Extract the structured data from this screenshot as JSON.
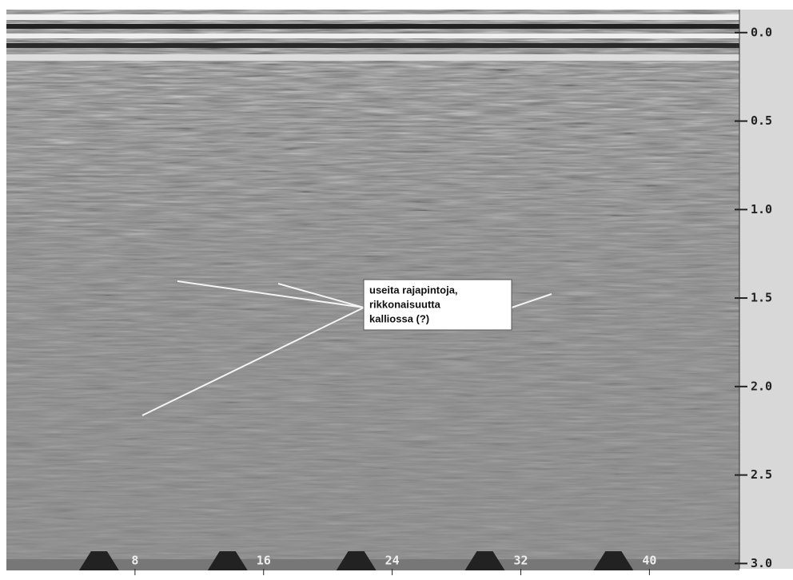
{
  "chart_data": {
    "type": "radargram",
    "xlim": [
      0,
      45.6
    ],
    "xticks": [
      8,
      16,
      24,
      32,
      40
    ],
    "ylim": [
      -0.13,
      3.03
    ],
    "yticks": [
      {
        "value": 0,
        "label": "0.0"
      },
      0.5,
      {
        "value": 1,
        "label": "1.0"
      },
      1.5,
      {
        "value": 2,
        "label": "2.0"
      },
      2.5,
      {
        "value": 3,
        "label": "3.0"
      }
    ],
    "annotation": [
      "useita rajapintoja,",
      "rikkonaisuutta",
      "kalliossa (?)"
    ]
  }
}
